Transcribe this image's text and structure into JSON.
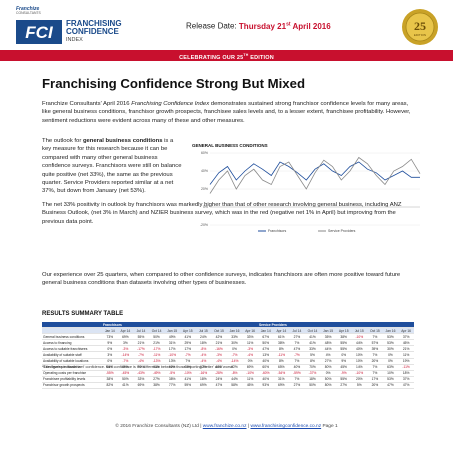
{
  "header": {
    "small_logo": "Franchize",
    "small_logo_sub": "CONSULTANTS",
    "fci_letters": "FCI",
    "logo_lines": [
      "FRANCHISING",
      "CONFIDENCE",
      "INDEX"
    ],
    "release_label": "Release Date: ",
    "release_date": "Thursday 21",
    "release_date_sup": "st",
    "release_date_end": " April 2016",
    "seal_number": "25",
    "seal_sub": "EDITION"
  },
  "banner": {
    "text": "CELEBRATING OUR 25",
    "sup": "TH",
    "end": " EDITION"
  },
  "title": "Franchising Confidence Strong But Mixed",
  "intro": {
    "prefix": "Franchize Consultants' April 2016 ",
    "italic": "Franchising Confidence Index",
    "rest": " demonstrates sustained strong franchisor confidence levels for many areas, like general business conditions, franchisor growth prospects, franchisee sales levels and, to a lesser extent, franchisee profitability. However, sentiment reductions were evident across many of these and other measures."
  },
  "p1": {
    "pre": "The outlook for ",
    "bold": "general business conditions",
    "rest": " is a key measure for this research because it can be compared with many other general business confidence surveys. Franchisors were still on balance quite positive (net 33%), the same as the previous quarter. Service Providers reported similar at a net 37%, but down from January (net 53%)."
  },
  "p2": "The net 33% positivity in outlook by franchisors was markedly higher than that of other research involving general business, including ANZ Business Outlook, (net 3% in March) and NZIER business survey, which was in the red (negative net 1% in April) but improving from the previous data point.",
  "p3": "Our experience over 25 quarters, when compared to other confidence surveys, indicates franchisors are often more positive toward future general business conditions than datasets involving other types of businesses.",
  "chart_data": {
    "type": "line",
    "title": "GENERAL BUSINESS CONDITIONS",
    "ylim": [
      -20,
      60
    ],
    "yticks": [
      "60%",
      "40%",
      "20%",
      "0%",
      "-20%"
    ],
    "series": [
      {
        "name": "Franchisors",
        "color": "#1f4e9c",
        "values": [
          25,
          38,
          45,
          30,
          40,
          48,
          42,
          35,
          50,
          45,
          38,
          30,
          42,
          48,
          40,
          35,
          45,
          50,
          42,
          38,
          30,
          35,
          40,
          33,
          33
        ]
      },
      {
        "name": "Service Providers",
        "color": "#8a8a8a",
        "values": [
          15,
          30,
          40,
          20,
          35,
          42,
          30,
          25,
          45,
          50,
          35,
          20,
          38,
          52,
          45,
          30,
          40,
          55,
          48,
          35,
          25,
          40,
          45,
          53,
          37
        ]
      }
    ]
  },
  "table": {
    "title": "RESULTS SUMMARY TABLE",
    "groups": [
      "Franchisors",
      "Service Providers"
    ],
    "periods": [
      "Jan 14",
      "Apr 14",
      "Jul 14",
      "Oct 14",
      "Jan 15",
      "Apr 15",
      "Jul 15",
      "Oct 15",
      "Jan 16",
      "Apr 16",
      "Jan 14",
      "Apr 14",
      "Jul 14",
      "Oct 14",
      "Jan 15",
      "Apr 15",
      "Jul 15",
      "Oct 15",
      "Jan 16",
      "Apr 16"
    ],
    "rows": [
      {
        "label": "General business conditions",
        "values": [
          "73%",
          "69%",
          "55%",
          "50%",
          "49%",
          "41%",
          "24%",
          "42%",
          "33%",
          "33%",
          "67%",
          "61%",
          "27%",
          "41%",
          "35%",
          "38%",
          "-10%",
          "7%",
          "53%",
          "37%"
        ]
      },
      {
        "label": "Access to financing",
        "values": [
          "9%",
          "3%",
          "21%",
          "21%",
          "31%",
          "29%",
          "18%",
          "21%",
          "30%",
          "11%",
          "50%",
          "38%",
          "7%",
          "41%",
          "48%",
          "55%",
          "44%",
          "57%",
          "53%",
          "45%"
        ]
      },
      {
        "label": "Access to suitable franchisees",
        "values": [
          "0%",
          "-3%",
          "-17%",
          "-17%",
          "17%",
          "17%",
          "-8%",
          "-16%",
          "0%",
          "-3%",
          "47%",
          "8%",
          "47%",
          "33%",
          "44%",
          "55%",
          "40%",
          "39%",
          "30%",
          "21%"
        ]
      },
      {
        "label": "Availability of suitable staff",
        "values": [
          "3%",
          "-14%",
          "-7%",
          "-11%",
          "-10%",
          "-7%",
          "-4%",
          "-3%",
          "-7%",
          "-4%",
          "13%",
          "-11%",
          "-7%",
          "5%",
          "4%",
          "0%",
          "10%",
          "7%",
          "0%",
          "11%"
        ]
      },
      {
        "label": "Availability of suitable locations",
        "values": [
          "0%",
          "-7%",
          "-4%",
          "-13%",
          "13%",
          "7%",
          "-4%",
          "-4%",
          "-14%",
          "0%",
          "40%",
          "8%",
          "7%",
          "8%",
          "27%",
          "9%",
          "10%",
          "20%",
          "0%",
          "19%"
        ]
      },
      {
        "label": "Sales levels per franchise",
        "values": [
          "64%",
          "69%",
          "70%",
          "63%",
          "62%",
          "68%",
          "62%",
          "63%",
          "62%",
          "69%",
          "60%",
          "65%",
          "40%",
          "70%",
          "80%",
          "45%",
          "14%",
          "7%",
          "63%",
          "-11%"
        ]
      },
      {
        "label": "Operating costs per franchise",
        "values": [
          "-55%",
          "-45%",
          "-43%",
          "-49%",
          "-5%",
          "-10%",
          "-16%",
          "-28%",
          "-8%",
          "-10%",
          "-60%",
          "-54%",
          "-59%",
          "-37%",
          "0%",
          "-9%",
          "-10%",
          "7%",
          "10%",
          "18%"
        ]
      },
      {
        "label": "Franchisee profitability levels",
        "values": [
          "38%",
          "50%",
          "33%",
          "27%",
          "38%",
          "41%",
          "18%",
          "24%",
          "44%",
          "11%",
          "40%",
          "31%",
          "7%",
          "18%",
          "50%",
          "55%",
          "20%",
          "17%",
          "53%",
          "37%"
        ]
      },
      {
        "label": "Franchisor growth prospects",
        "values": [
          "82%",
          "41%",
          "69%",
          "38%",
          "77%",
          "59%",
          "69%",
          "47%",
          "58%",
          "45%",
          "93%",
          "69%",
          "27%",
          "50%",
          "80%",
          "27%",
          "5%",
          "20%",
          "47%",
          "47%"
        ]
      }
    ]
  },
  "footnote": "*The figures indicate 'net' confidence. Net' confidence is the difference between those reporting 'better' and 'worse'",
  "footer": {
    "copy": "© 2016 Franchize Consultants (NZ) Ltd | ",
    "link1": "www.franchize.co.nz",
    "sep": " | ",
    "link2": "www.franchisingconfidence.co.nz",
    "page": "  Page 1"
  }
}
